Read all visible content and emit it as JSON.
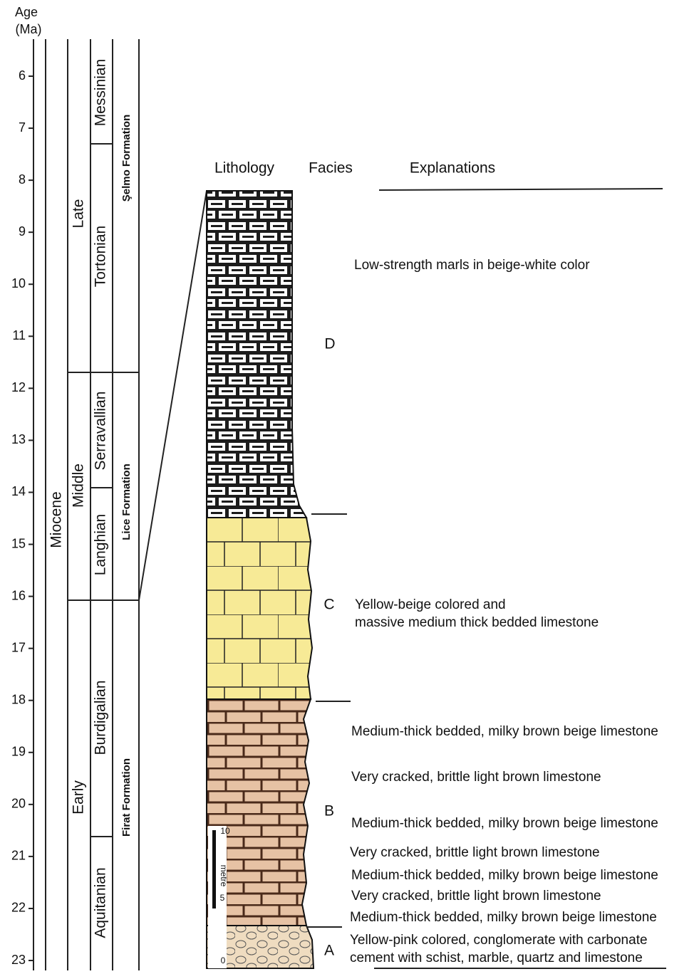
{
  "header": {
    "age_label": "Age",
    "age_unit": "(Ma)",
    "lithology": "Lithology",
    "facies": "Facies",
    "explanations": "Explanations"
  },
  "age_axis": {
    "ticks": [
      6,
      7,
      8,
      9,
      10,
      11,
      12,
      13,
      14,
      15,
      16,
      17,
      18,
      19,
      20,
      21,
      22,
      23
    ]
  },
  "epoch": "Miocene",
  "subepochs": [
    "Late",
    "Middle",
    "Early"
  ],
  "stages": [
    "Messinian",
    "Tortonian",
    "Serravallian",
    "Langhian",
    "Burdigalian",
    "Aquitanian"
  ],
  "formations": [
    "Şelmo Formation",
    "Lice Formation",
    "Firat Formation"
  ],
  "facies": [
    "D",
    "C",
    "B",
    "A"
  ],
  "scale": {
    "top": "10",
    "middle": "5",
    "bottom": "0",
    "unit": "metre"
  },
  "explanations": [
    "Low-strength marls in beige-white color",
    "Yellow-beige colored and",
    "massive medium thick bedded limestone",
    "Medium-thick bedded, milky brown beige limestone",
    "Very cracked, brittle light brown limestone",
    "Medium-thick bedded, milky brown beige limestone",
    "Very cracked, brittle light brown limestone",
    "Medium-thick bedded, milky brown beige limestone",
    "Very cracked, brittle light brown limestone",
    "Medium-thick bedded, milky brown beige limestone",
    "Yellow-pink colored, conglomerate with carbonate",
    "cement with schist, marble, quartz and limestone"
  ]
}
